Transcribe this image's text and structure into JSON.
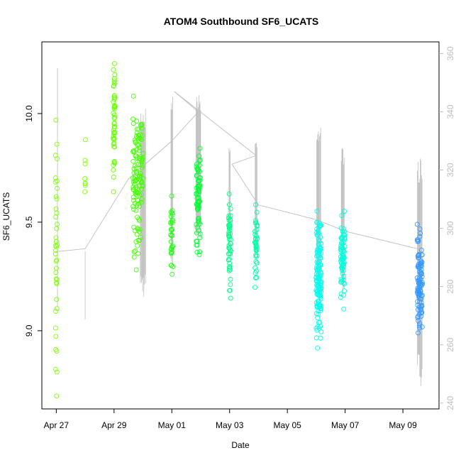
{
  "chart_data": {
    "type": "scatter",
    "title": "ATOM4 Southbound SF6_UCATS",
    "xlabel": "Date",
    "ylabel": "SF6_UCATS",
    "x_axis": {
      "type": "date",
      "ticks": [
        "Apr 27",
        "Apr 29",
        "May 01",
        "May 03",
        "May 05",
        "May 07",
        "May 09"
      ],
      "tick_values": [
        "2018-04-27",
        "2018-04-29",
        "2018-05-01",
        "2018-05-03",
        "2018-05-05",
        "2018-05-07",
        "2018-05-09"
      ],
      "range": [
        "2018-04-26T12:00",
        "2018-05-10T06:00"
      ]
    },
    "y_axis": {
      "ticks": [
        "9.0",
        "9.5",
        "10.0"
      ],
      "tick_values": [
        9.0,
        9.5,
        10.0
      ],
      "range": [
        8.64,
        10.33
      ]
    },
    "y2_axis": {
      "ticks": [
        "240",
        "260",
        "280",
        "300",
        "320",
        "340",
        "360"
      ],
      "tick_values": [
        240,
        260,
        280,
        300,
        320,
        340,
        360
      ],
      "range": [
        238,
        364
      ],
      "color": "#bebebe"
    },
    "grid": false,
    "point_color_scale": [
      "#33ff00",
      "#00ff55",
      "#00ffcc",
      "#00ccff",
      "#3399ff"
    ],
    "line_color": "#bebebe",
    "clusters": [
      {
        "date": "2018-04-27",
        "x_spread": 0.03,
        "y_min": 8.7,
        "y_max": 9.97,
        "n": 40,
        "color": "#7cff00"
      },
      {
        "date": "2018-04-28",
        "x_spread": 0.01,
        "y_min": 9.64,
        "y_max": 9.88,
        "n": 8,
        "color": "#7cff00"
      },
      {
        "date": "2018-04-29",
        "x_spread": 0.03,
        "y_min": 9.64,
        "y_max": 10.23,
        "n": 45,
        "color": "#66ff00"
      },
      {
        "date": "2018-04-29T20:00",
        "x_spread": 0.18,
        "y_min": 9.28,
        "y_max": 10.08,
        "n": 130,
        "color": "#44ff00"
      },
      {
        "date": "2018-05-01",
        "x_spread": 0.04,
        "y_min": 9.26,
        "y_max": 9.62,
        "n": 30,
        "color": "#22ff11"
      },
      {
        "date": "2018-05-01T22:00",
        "x_spread": 0.07,
        "y_min": 9.35,
        "y_max": 9.84,
        "n": 70,
        "color": "#00ff33"
      },
      {
        "date": "2018-05-03",
        "x_spread": 0.04,
        "y_min": 9.15,
        "y_max": 9.63,
        "n": 50,
        "color": "#00ff88"
      },
      {
        "date": "2018-05-03T22:00",
        "x_spread": 0.04,
        "y_min": 9.2,
        "y_max": 9.58,
        "n": 40,
        "color": "#00ffaa"
      },
      {
        "date": "2018-05-06T02:00",
        "x_spread": 0.09,
        "y_min": 8.92,
        "y_max": 9.55,
        "n": 140,
        "color": "#00ffee"
      },
      {
        "date": "2018-05-06T22:00",
        "x_spread": 0.07,
        "y_min": 9.1,
        "y_max": 9.55,
        "n": 70,
        "color": "#00ffdd"
      },
      {
        "date": "2018-05-09T14:00",
        "x_spread": 0.09,
        "y_min": 8.99,
        "y_max": 9.49,
        "n": 100,
        "color": "#3399ff"
      }
    ],
    "altitude_trace": {
      "series": "y2",
      "points": [
        [
          "2018-04-27T00:00",
          292
        ],
        [
          "2018-04-28T00:00",
          293
        ],
        [
          "2018-04-29T12:00",
          317
        ],
        [
          "2018-05-01T00:00",
          330
        ],
        [
          "2018-05-01T22:00",
          340
        ],
        [
          "2018-05-01T02:00",
          347
        ],
        [
          "2018-05-03T22:00",
          325
        ],
        [
          "2018-05-03T02:00",
          322
        ],
        [
          "2018-05-04T00:00",
          308
        ],
        [
          "2018-05-06T00:00",
          303
        ],
        [
          "2018-05-07T00:00",
          299
        ],
        [
          "2018-05-09T12:00",
          293
        ]
      ],
      "profiles": [
        {
          "date": "2018-04-27T01:00",
          "min": 260,
          "max": 355,
          "n": 1
        },
        {
          "date": "2018-04-28T00:00",
          "min": 268,
          "max": 293,
          "n": 1
        },
        {
          "date": "2018-04-30T00:00",
          "min": 276,
          "max": 342,
          "n": 10
        },
        {
          "date": "2018-05-01T00:00",
          "min": 283,
          "max": 348,
          "n": 4
        },
        {
          "date": "2018-05-01T22:00",
          "min": 296,
          "max": 346,
          "n": 9
        },
        {
          "date": "2018-05-03T00:00",
          "min": 294,
          "max": 329,
          "n": 3
        },
        {
          "date": "2018-05-03T22:00",
          "min": 289,
          "max": 331,
          "n": 4
        },
        {
          "date": "2018-05-06T02:00",
          "min": 275,
          "max": 337,
          "n": 8
        },
        {
          "date": "2018-05-06T22:00",
          "min": 278,
          "max": 328,
          "n": 6
        },
        {
          "date": "2018-05-09T14:00",
          "min": 246,
          "max": 324,
          "n": 9
        }
      ]
    }
  }
}
